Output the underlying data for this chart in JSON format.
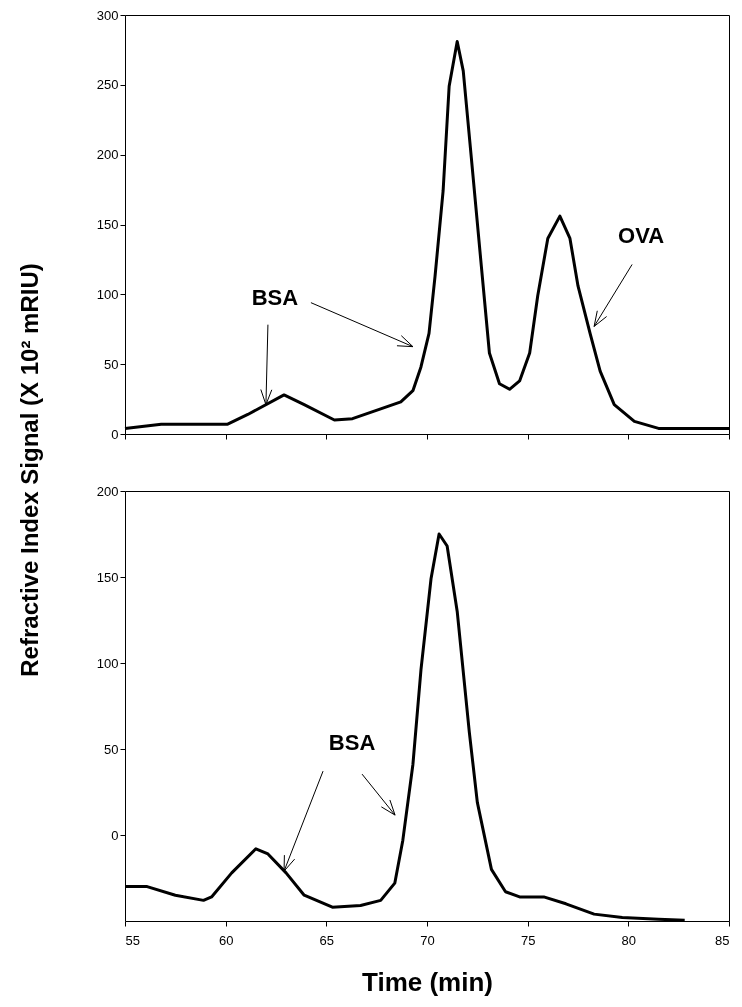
{
  "chart_data": [
    {
      "type": "line",
      "color": "#000000",
      "ylabel": "Refractive Index Signal (X 10² mRIU)",
      "tick_labels": "y",
      "x": [
        55,
        56.8,
        60.1,
        61.1,
        62.9,
        63.9,
        65.4,
        66.3,
        67.7,
        68.7,
        69.3,
        69.7,
        70.1,
        70.4,
        70.8,
        71.1,
        71.5,
        71.8,
        72.2,
        72.7,
        73.1,
        73.6,
        74.1,
        74.6,
        75.1,
        75.5,
        76.0,
        76.6,
        77.1,
        77.5,
        78.1,
        78.6,
        79.3,
        80.3,
        81.5,
        85
      ],
      "values": [
        4,
        7,
        7,
        14,
        28,
        21,
        10,
        11,
        18,
        23,
        31,
        48,
        72,
        113,
        174,
        249,
        281,
        260,
        198,
        120,
        58,
        36,
        32,
        38,
        58,
        99,
        140,
        156,
        140,
        106,
        72,
        45,
        21,
        9,
        4,
        4
      ],
      "xlim": [
        55,
        85
      ],
      "xticks": [
        55,
        60,
        65,
        70,
        75,
        80,
        85
      ],
      "ylim": [
        0,
        300
      ],
      "yticks": [
        0,
        50,
        100,
        150,
        200,
        250,
        300
      ],
      "annotations": [
        {
          "text": "BSA",
          "x": 62.0,
          "y": 21
        },
        {
          "text": "OVA",
          "x": 78.3,
          "y": 77
        }
      ]
    },
    {
      "type": "line",
      "color": "#000000",
      "xlabel": "Time (min)",
      "x": [
        55,
        56.1,
        57.5,
        58.9,
        59.3,
        60.3,
        61.5,
        62.1,
        63.0,
        63.9,
        65.3,
        66.7,
        67.7,
        68.4,
        68.8,
        69.3,
        69.7,
        70.2,
        70.6,
        71.0,
        71.5,
        72.1,
        72.5,
        73.2,
        73.9,
        74.6,
        75.8,
        76.9,
        78.3,
        79.7,
        81.5,
        82.8
      ],
      "values": [
        -30,
        -30,
        -35,
        -38,
        -36,
        -22,
        -8,
        -11,
        -22,
        -35,
        -42,
        -41,
        -38,
        -28,
        -3,
        41,
        96,
        149,
        175,
        168,
        130,
        60,
        19,
        -20,
        -33,
        -36,
        -36,
        -40,
        -46,
        -48,
        -49,
        -49.5
      ],
      "xlim": [
        55,
        85
      ],
      "xticks": [
        55,
        60,
        65,
        70,
        75,
        80,
        85
      ],
      "ylim": [
        -50,
        200
      ],
      "yticks": [
        0,
        50,
        100,
        150,
        200
      ],
      "annotations": [
        {
          "text": "BSA",
          "x": 62.9,
          "y": -21
        }
      ]
    }
  ]
}
